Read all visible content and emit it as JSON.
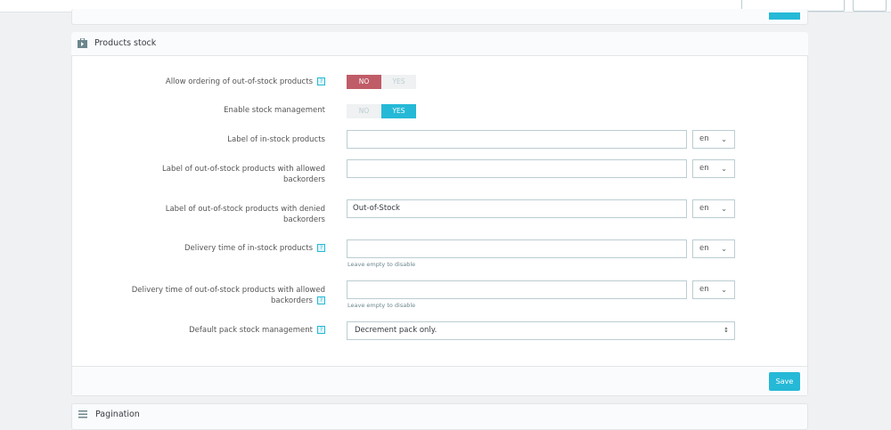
{
  "section_title": "Products stock",
  "fields": [
    {
      "label": "Allow ordering of out-of-stock products",
      "help": "?",
      "type": "toggle",
      "no": "NO",
      "yes": "YES",
      "value": "NO"
    },
    {
      "label": "Enable stock management",
      "type": "toggle",
      "no": "NO",
      "yes": "YES",
      "value": "YES"
    },
    {
      "label": "Label of in-stock products",
      "type": "text",
      "value": "",
      "lang": "en"
    },
    {
      "label": "Label of out-of-stock products with allowed backorders",
      "type": "text",
      "value": "",
      "lang": "en"
    },
    {
      "label": "Label of out-of-stock products with denied backorders",
      "type": "text",
      "value": "Out-of-Stock",
      "lang": "en"
    },
    {
      "label": "Delivery time of in-stock products",
      "help": "?",
      "type": "text",
      "value": "",
      "lang": "en",
      "hint": "Leave empty to disable"
    },
    {
      "label": "Delivery time of out-of-stock products with allowed backorders",
      "help": "?",
      "type": "text",
      "value": "",
      "lang": "en",
      "hint": "Leave empty to disable"
    },
    {
      "label": "Default pack stock management",
      "help": "?",
      "type": "select",
      "value": "Decrement pack only."
    }
  ],
  "save_label": "Save",
  "next_section_title": "Pagination",
  "colors": {
    "accent": "#25b9d7",
    "no_active": "#c05c67",
    "background": "#eff1f2"
  }
}
